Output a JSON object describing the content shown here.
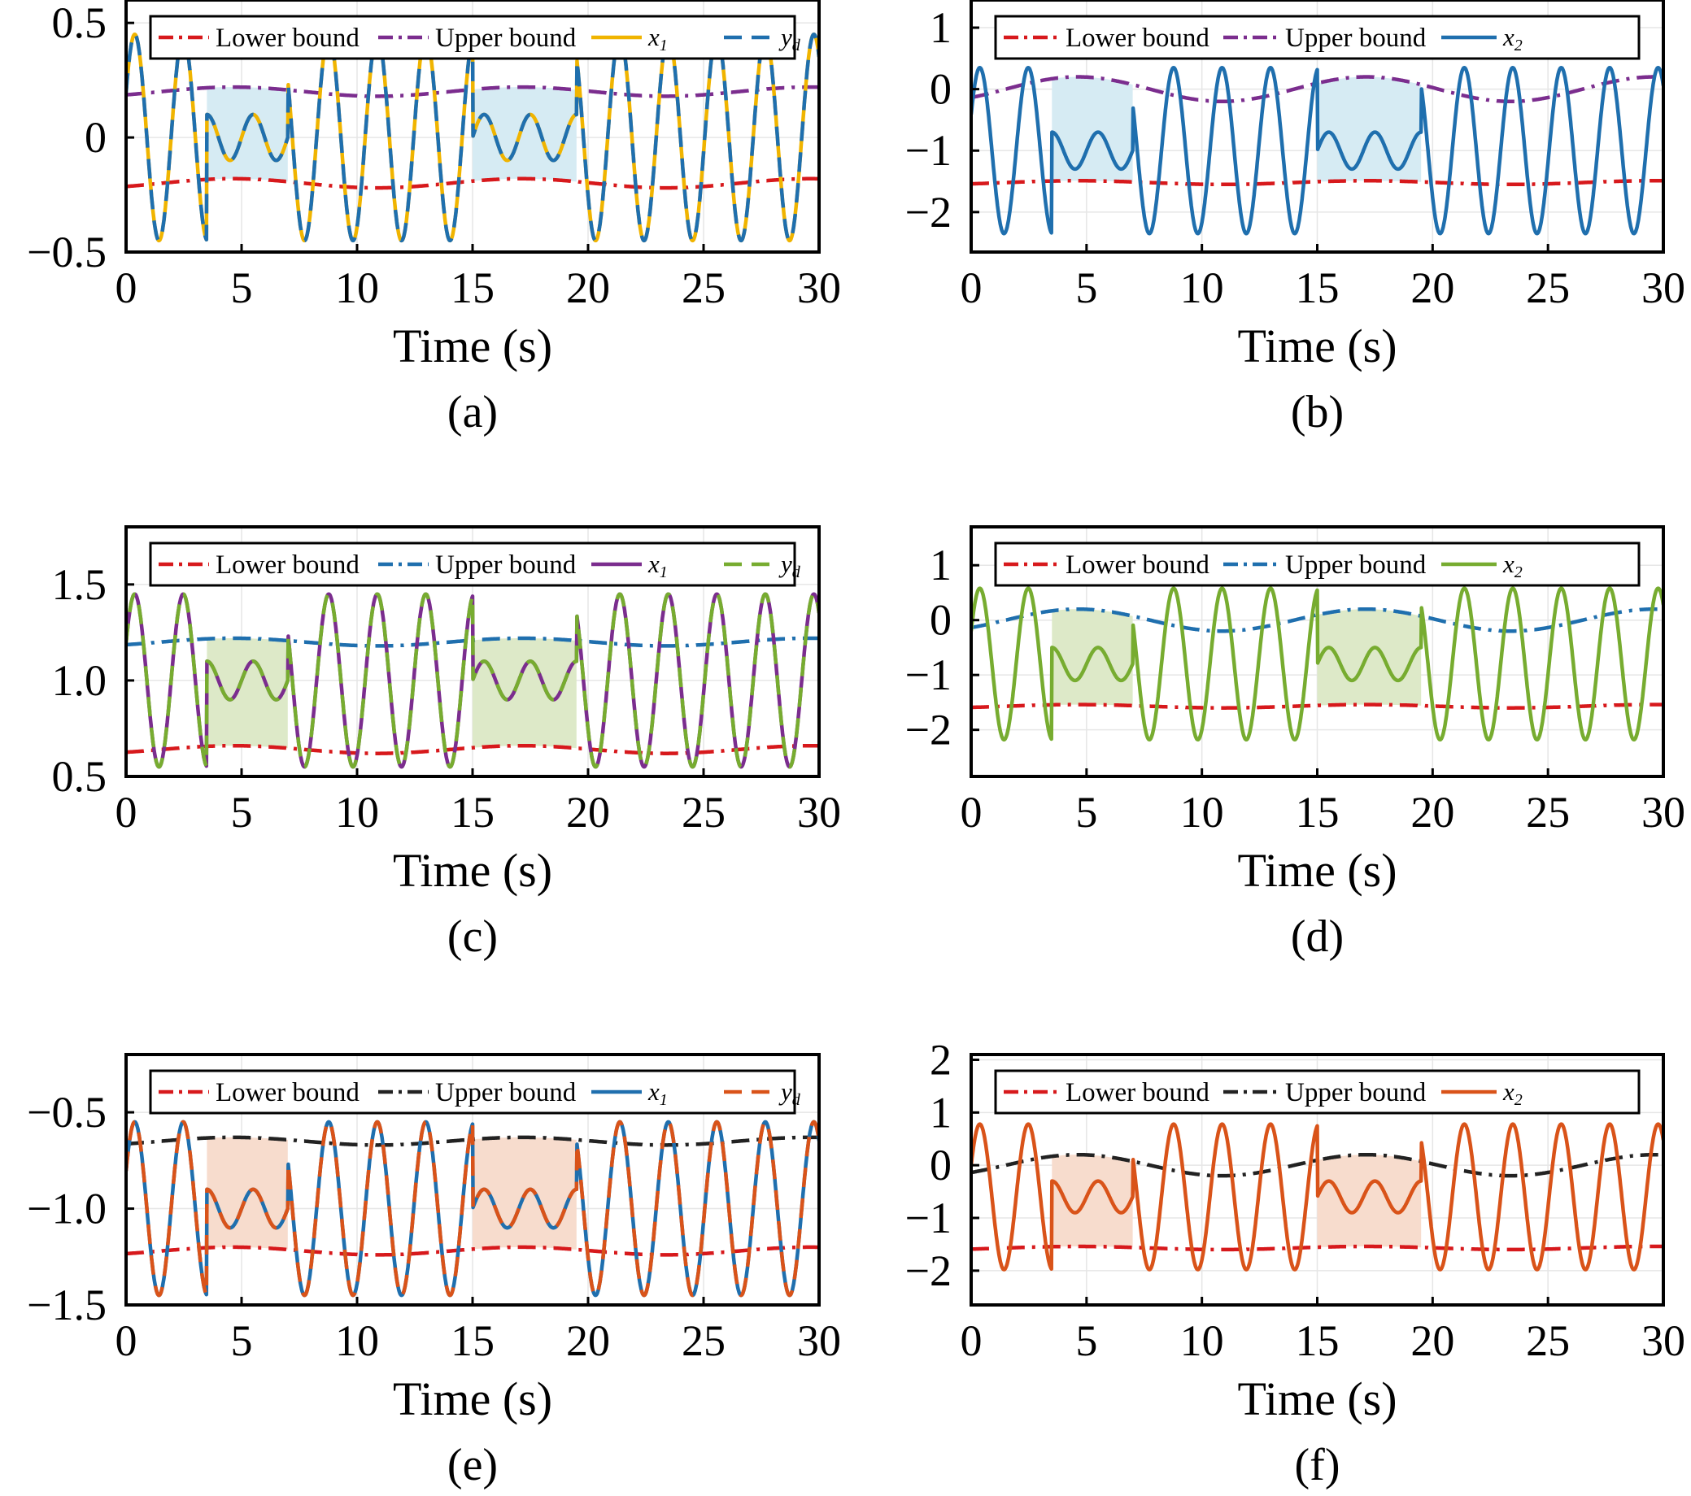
{
  "chart_data": [
    {
      "panel_label": "(a)",
      "type": "line",
      "xlabel": "Time (s)",
      "xlim": [
        0,
        30
      ],
      "ylim": [
        -0.5,
        0.6
      ],
      "x_ticks": [
        0,
        5,
        10,
        15,
        20,
        25,
        30
      ],
      "x_tick_labels": [
        "0",
        "5",
        "10",
        "15",
        "20",
        "25",
        "30"
      ],
      "y_ticks": [
        -0.5,
        0,
        0.5
      ],
      "y_tick_labels": [
        "−0.5",
        "0",
        "0.5"
      ],
      "grid": true,
      "legend_position": "top",
      "signal": {
        "offset": 0,
        "amplitude": 0.45,
        "period": 2.1,
        "phase": 0.45,
        "small_amplitude": 0.1,
        "small_period": 2.0
      },
      "shaded_intervals": [
        [
          3.5,
          7.0
        ],
        [
          15.0,
          19.5
        ]
      ],
      "shade_color": "#d6ebf3",
      "series": [
        {
          "name": "Lower bound",
          "color": "#d7191c",
          "style": "dashdot",
          "center": -0.2,
          "ripple": 0.02,
          "period": 12.5
        },
        {
          "name": "Upper bound",
          "color": "#7b2d8e",
          "style": "dashdot",
          "center": 0.2,
          "ripple": 0.02,
          "period": 12.5
        },
        {
          "name": "x",
          "sub": "1",
          "color": "#f0b400",
          "style": "solid"
        },
        {
          "name": "y",
          "sub": "d",
          "color": "#1f6fae",
          "style": "dashed"
        }
      ]
    },
    {
      "panel_label": "(b)",
      "type": "line",
      "xlabel": "Time (s)",
      "xlim": [
        0,
        30
      ],
      "ylim": [
        -2.65,
        1.45
      ],
      "x_ticks": [
        0,
        5,
        10,
        15,
        20,
        25,
        30
      ],
      "x_tick_labels": [
        "0",
        "5",
        "10",
        "15",
        "20",
        "25",
        "30"
      ],
      "y_ticks": [
        -2,
        -1,
        0,
        1
      ],
      "y_tick_labels": [
        "−2",
        "−1",
        "0",
        "1"
      ],
      "grid": true,
      "legend_position": "top",
      "signal": {
        "offset": -1.0,
        "amplitude": 1.35,
        "period": 2.1,
        "phase": 0.45,
        "small_amplitude": 0.3,
        "small_period": 2.0
      },
      "shaded_intervals": [
        [
          3.5,
          7.0
        ],
        [
          15.0,
          19.5
        ]
      ],
      "shade_color": "#d6ebf3",
      "series": [
        {
          "name": "Lower bound",
          "color": "#d7191c",
          "style": "dashdot",
          "center": -1.52,
          "ripple": 0.03,
          "period": 12.5
        },
        {
          "name": "Upper bound",
          "color": "#7b2d8e",
          "style": "dashdot",
          "center": 0.0,
          "ripple": 0.2,
          "period": 12.5
        },
        {
          "name": "x",
          "sub": "2",
          "color": "#1f6fae",
          "style": "solid"
        }
      ]
    },
    {
      "panel_label": "(c)",
      "type": "line",
      "xlabel": "Time (s)",
      "xlim": [
        0,
        30
      ],
      "ylim": [
        0.5,
        1.8
      ],
      "x_ticks": [
        0,
        5,
        10,
        15,
        20,
        25,
        30
      ],
      "x_tick_labels": [
        "0",
        "5",
        "10",
        "15",
        "20",
        "25",
        "30"
      ],
      "y_ticks": [
        0.5,
        1.0,
        1.5
      ],
      "y_tick_labels": [
        "0.5",
        "1.0",
        "1.5"
      ],
      "grid": true,
      "legend_position": "top",
      "signal": {
        "offset": 1.0,
        "amplitude": 0.45,
        "period": 2.1,
        "phase": 0.45,
        "small_amplitude": 0.1,
        "small_period": 2.0
      },
      "shaded_intervals": [
        [
          3.5,
          7.0
        ],
        [
          15.0,
          19.5
        ]
      ],
      "shade_color": "#dde9c8",
      "series": [
        {
          "name": "Lower bound",
          "color": "#d7191c",
          "style": "dashdot",
          "center": 0.64,
          "ripple": 0.02,
          "period": 12.5
        },
        {
          "name": "Upper bound",
          "color": "#1f6fae",
          "style": "dashdot",
          "center": 1.2,
          "ripple": 0.02,
          "period": 12.5
        },
        {
          "name": "x",
          "sub": "1",
          "color": "#7b2d8e",
          "style": "solid"
        },
        {
          "name": "y",
          "sub": "d",
          "color": "#77ac30",
          "style": "dashed"
        }
      ]
    },
    {
      "panel_label": "(d)",
      "type": "line",
      "xlabel": "Time (s)",
      "xlim": [
        0,
        30
      ],
      "ylim": [
        -2.85,
        1.7
      ],
      "x_ticks": [
        0,
        5,
        10,
        15,
        20,
        25,
        30
      ],
      "x_tick_labels": [
        "0",
        "5",
        "10",
        "15",
        "20",
        "25",
        "30"
      ],
      "y_ticks": [
        -2,
        -1,
        0,
        1
      ],
      "y_tick_labels": [
        "−2",
        "−1",
        "0",
        "1"
      ],
      "grid": true,
      "legend_position": "top",
      "signal": {
        "offset": -0.8,
        "amplitude": 1.38,
        "period": 2.1,
        "phase": 0.45,
        "small_amplitude": 0.3,
        "small_period": 2.0
      },
      "shaded_intervals": [
        [
          3.5,
          7.0
        ],
        [
          15.0,
          19.5
        ]
      ],
      "shade_color": "#dde9c8",
      "series": [
        {
          "name": "Lower bound",
          "color": "#d7191c",
          "style": "dashdot",
          "center": -1.57,
          "ripple": 0.03,
          "period": 12.5
        },
        {
          "name": "Upper bound",
          "color": "#1f6fae",
          "style": "dashdot",
          "center": 0.0,
          "ripple": 0.2,
          "period": 12.5
        },
        {
          "name": "x",
          "sub": "2",
          "color": "#77ac30",
          "style": "solid"
        }
      ]
    },
    {
      "panel_label": "(e)",
      "type": "line",
      "xlabel": "Time (s)",
      "xlim": [
        0,
        30
      ],
      "ylim": [
        -1.5,
        -0.2
      ],
      "x_ticks": [
        0,
        5,
        10,
        15,
        20,
        25,
        30
      ],
      "x_tick_labels": [
        "0",
        "5",
        "10",
        "15",
        "20",
        "25",
        "30"
      ],
      "y_ticks": [
        -1.5,
        -1.0,
        -0.5
      ],
      "y_tick_labels": [
        "−1.5",
        "−1.0",
        "−0.5"
      ],
      "grid": true,
      "legend_position": "top",
      "signal": {
        "offset": -1.0,
        "amplitude": 0.45,
        "period": 2.1,
        "phase": 0.45,
        "small_amplitude": 0.1,
        "small_period": 2.0
      },
      "shaded_intervals": [
        [
          3.5,
          7.0
        ],
        [
          15.0,
          19.5
        ]
      ],
      "shade_color": "#f7dccd",
      "series": [
        {
          "name": "Lower bound",
          "color": "#d7191c",
          "style": "dashdot",
          "center": -1.22,
          "ripple": 0.02,
          "period": 12.5
        },
        {
          "name": "Upper bound",
          "color": "#222222",
          "style": "dashdot",
          "center": -0.65,
          "ripple": 0.02,
          "period": 12.5
        },
        {
          "name": "x",
          "sub": "1",
          "color": "#1f6fae",
          "style": "solid"
        },
        {
          "name": "y",
          "sub": "d",
          "color": "#d95319",
          "style": "dashed"
        }
      ]
    },
    {
      "panel_label": "(f)",
      "type": "line",
      "xlabel": "Time (s)",
      "xlim": [
        0,
        30
      ],
      "ylim": [
        -2.65,
        2.1
      ],
      "x_ticks": [
        0,
        5,
        10,
        15,
        20,
        25,
        30
      ],
      "x_tick_labels": [
        "0",
        "5",
        "10",
        "15",
        "20",
        "25",
        "30"
      ],
      "y_ticks": [
        -2,
        -1,
        0,
        1,
        2
      ],
      "y_tick_labels": [
        "−2",
        "−1",
        "0",
        "1",
        "2"
      ],
      "grid": true,
      "legend_position": "top",
      "signal": {
        "offset": -0.6,
        "amplitude": 1.38,
        "period": 2.1,
        "phase": 0.45,
        "small_amplitude": 0.3,
        "small_period": 2.0
      },
      "shaded_intervals": [
        [
          3.5,
          7.0
        ],
        [
          15.0,
          19.5
        ]
      ],
      "shade_color": "#f7dccd",
      "series": [
        {
          "name": "Lower bound",
          "color": "#d7191c",
          "style": "dashdot",
          "center": -1.57,
          "ripple": 0.03,
          "period": 12.5
        },
        {
          "name": "Upper bound",
          "color": "#222222",
          "style": "dashdot",
          "center": 0.0,
          "ripple": 0.2,
          "period": 12.5
        },
        {
          "name": "x",
          "sub": "2",
          "color": "#d95319",
          "style": "solid"
        }
      ]
    }
  ]
}
